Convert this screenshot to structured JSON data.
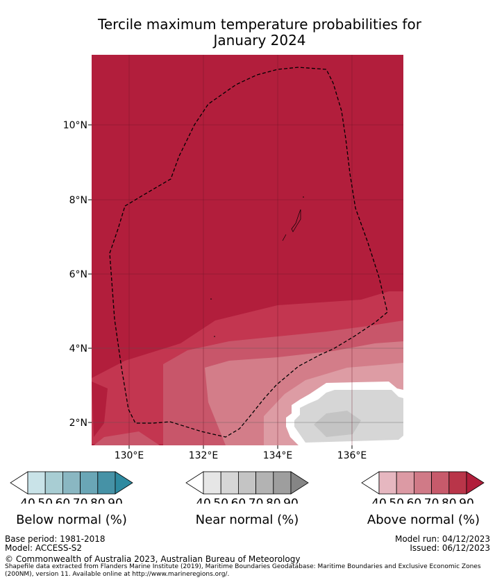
{
  "title": {
    "line1": "Tercile maximum temperature probabilities for",
    "line2": "January 2024"
  },
  "map": {
    "lat_labels": [
      "10°N",
      "8°N",
      "6°N",
      "4°N",
      "2°N"
    ],
    "lon_labels": [
      "130°E",
      "132°E",
      "134°E",
      "136°E"
    ],
    "colors": {
      "above_90": "#b21e3c",
      "above_80": "#c33650",
      "above_70": "#c8566a",
      "above_60": "#d37d89",
      "above_50": "#dd9ca4",
      "white": "#ffffff",
      "near_40": "#d6d6d6",
      "near_50": "#c4c4c4",
      "eez_line": "#000000"
    }
  },
  "legends": [
    {
      "label": "Below normal (%)",
      "ticks": [
        "40",
        "50",
        "60",
        "70",
        "80",
        "90"
      ],
      "colors": [
        "#ffffff",
        "#c9e3e8",
        "#a8cdd3",
        "#8ab7c2",
        "#6aa6b6",
        "#4692a6",
        "#2e8aa0"
      ]
    },
    {
      "label": "Near normal (%)",
      "ticks": [
        "40",
        "50",
        "60",
        "70",
        "80",
        "90"
      ],
      "colors": [
        "#ffffff",
        "#e6e6e6",
        "#d6d6d6",
        "#c4c4c4",
        "#b3b3b3",
        "#9e9e9e",
        "#858585"
      ]
    },
    {
      "label": "Above normal (%)",
      "ticks": [
        "40",
        "50",
        "60",
        "70",
        "80",
        "90"
      ],
      "colors": [
        "#ffffff",
        "#e6b7c0",
        "#dc9aa4",
        "#d07a87",
        "#c75a6b",
        "#b93549",
        "#b11e3b"
      ]
    }
  ],
  "footer": {
    "base_period": "Base period: 1981-2018",
    "model": "Model: ACCESS-S2",
    "model_run": "Model run: 04/12/2023",
    "issued": "Issued: 06/12/2023",
    "copyright": "© Commonwealth of Australia 2023, Australian Bureau of Meteorology",
    "shapefile_1": "Shapefile data extracted from Flanders Marine Institute (2019), Maritime Boundaries Geodatabase: Maritime Boundaries and Exclusive Economic Zones",
    "shapefile_2": "(200NM), version 11. Available online at http://www.marineregions.org/."
  }
}
